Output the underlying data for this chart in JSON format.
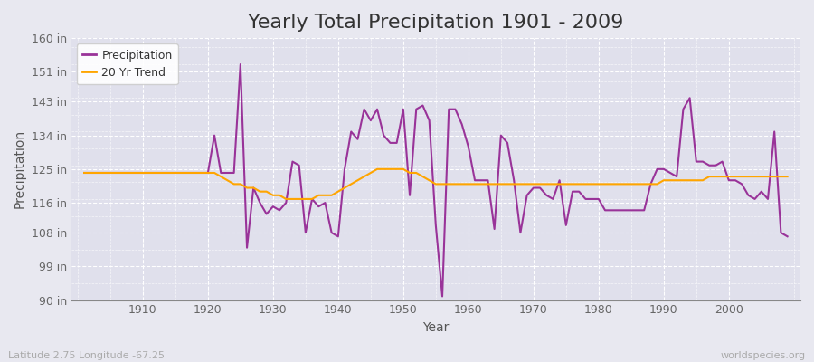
{
  "title": "Yearly Total Precipitation 1901 - 2009",
  "xlabel": "Year",
  "ylabel": "Precipitation",
  "subtitle_left": "Latitude 2.75 Longitude -67.25",
  "subtitle_right": "worldspecies.org",
  "years": [
    1901,
    1902,
    1903,
    1904,
    1905,
    1906,
    1907,
    1908,
    1909,
    1910,
    1911,
    1912,
    1913,
    1914,
    1915,
    1916,
    1917,
    1918,
    1919,
    1920,
    1921,
    1922,
    1923,
    1924,
    1925,
    1926,
    1927,
    1928,
    1929,
    1930,
    1931,
    1932,
    1933,
    1934,
    1935,
    1936,
    1937,
    1938,
    1939,
    1940,
    1941,
    1942,
    1943,
    1944,
    1945,
    1946,
    1947,
    1948,
    1949,
    1950,
    1951,
    1952,
    1953,
    1954,
    1955,
    1956,
    1957,
    1958,
    1959,
    1960,
    1961,
    1962,
    1963,
    1964,
    1965,
    1966,
    1967,
    1968,
    1969,
    1970,
    1971,
    1972,
    1973,
    1974,
    1975,
    1976,
    1977,
    1978,
    1979,
    1980,
    1981,
    1982,
    1983,
    1984,
    1985,
    1986,
    1987,
    1988,
    1989,
    1990,
    1991,
    1992,
    1993,
    1994,
    1995,
    1996,
    1997,
    1998,
    1999,
    2000,
    2001,
    2002,
    2003,
    2004,
    2005,
    2006,
    2007,
    2008,
    2009
  ],
  "precip": [
    124,
    124,
    124,
    124,
    124,
    124,
    124,
    124,
    124,
    124,
    124,
    124,
    124,
    124,
    124,
    124,
    124,
    124,
    124,
    124,
    134,
    124,
    124,
    124,
    153,
    104,
    120,
    116,
    113,
    115,
    114,
    116,
    127,
    126,
    108,
    117,
    115,
    116,
    108,
    107,
    125,
    135,
    133,
    141,
    138,
    141,
    134,
    132,
    132,
    141,
    118,
    141,
    142,
    138,
    110,
    91,
    141,
    141,
    137,
    131,
    122,
    122,
    122,
    109,
    134,
    132,
    122,
    108,
    118,
    120,
    120,
    118,
    117,
    122,
    110,
    119,
    119,
    117,
    117,
    117,
    114,
    114,
    114,
    114,
    114,
    114,
    114,
    121,
    125,
    125,
    124,
    123,
    141,
    144,
    127,
    127,
    126,
    126,
    127,
    122,
    122,
    121,
    118,
    117,
    119,
    117,
    135,
    108,
    107
  ],
  "trend": [
    124,
    124,
    124,
    124,
    124,
    124,
    124,
    124,
    124,
    124,
    124,
    124,
    124,
    124,
    124,
    124,
    124,
    124,
    124,
    124,
    124,
    123,
    122,
    121,
    121,
    120,
    120,
    119,
    119,
    118,
    118,
    117,
    117,
    117,
    117,
    117,
    118,
    118,
    118,
    119,
    120,
    121,
    122,
    123,
    124,
    125,
    125,
    125,
    125,
    125,
    124,
    124,
    123,
    122,
    121,
    121,
    121,
    121,
    121,
    121,
    121,
    121,
    121,
    121,
    121,
    121,
    121,
    121,
    121,
    121,
    121,
    121,
    121,
    121,
    121,
    121,
    121,
    121,
    121,
    121,
    121,
    121,
    121,
    121,
    121,
    121,
    121,
    121,
    121,
    122,
    122,
    122,
    122,
    122,
    122,
    122,
    123,
    123,
    123,
    123,
    123,
    123,
    123,
    123,
    123,
    123,
    123,
    123,
    123
  ],
  "precip_color": "#993399",
  "trend_color": "#FFA500",
  "bg_color": "#E8E8F0",
  "plot_bg_color": "#E0E0EC",
  "grid_color": "#FFFFFF",
  "ylim": [
    90,
    160
  ],
  "yticks": [
    90,
    99,
    108,
    116,
    125,
    134,
    143,
    151,
    160
  ],
  "ytick_labels": [
    "90 in",
    "99 in",
    "108 in",
    "116 in",
    "125 in",
    "134 in",
    "143 in",
    "151 in",
    "160 in"
  ],
  "xlim_min": 1901,
  "xlim_max": 2009,
  "xticks": [
    1910,
    1920,
    1930,
    1940,
    1950,
    1960,
    1970,
    1980,
    1990,
    2000
  ],
  "title_fontsize": 16,
  "axis_fontsize": 10,
  "tick_fontsize": 9,
  "legend_fontsize": 9,
  "linewidth": 1.5
}
